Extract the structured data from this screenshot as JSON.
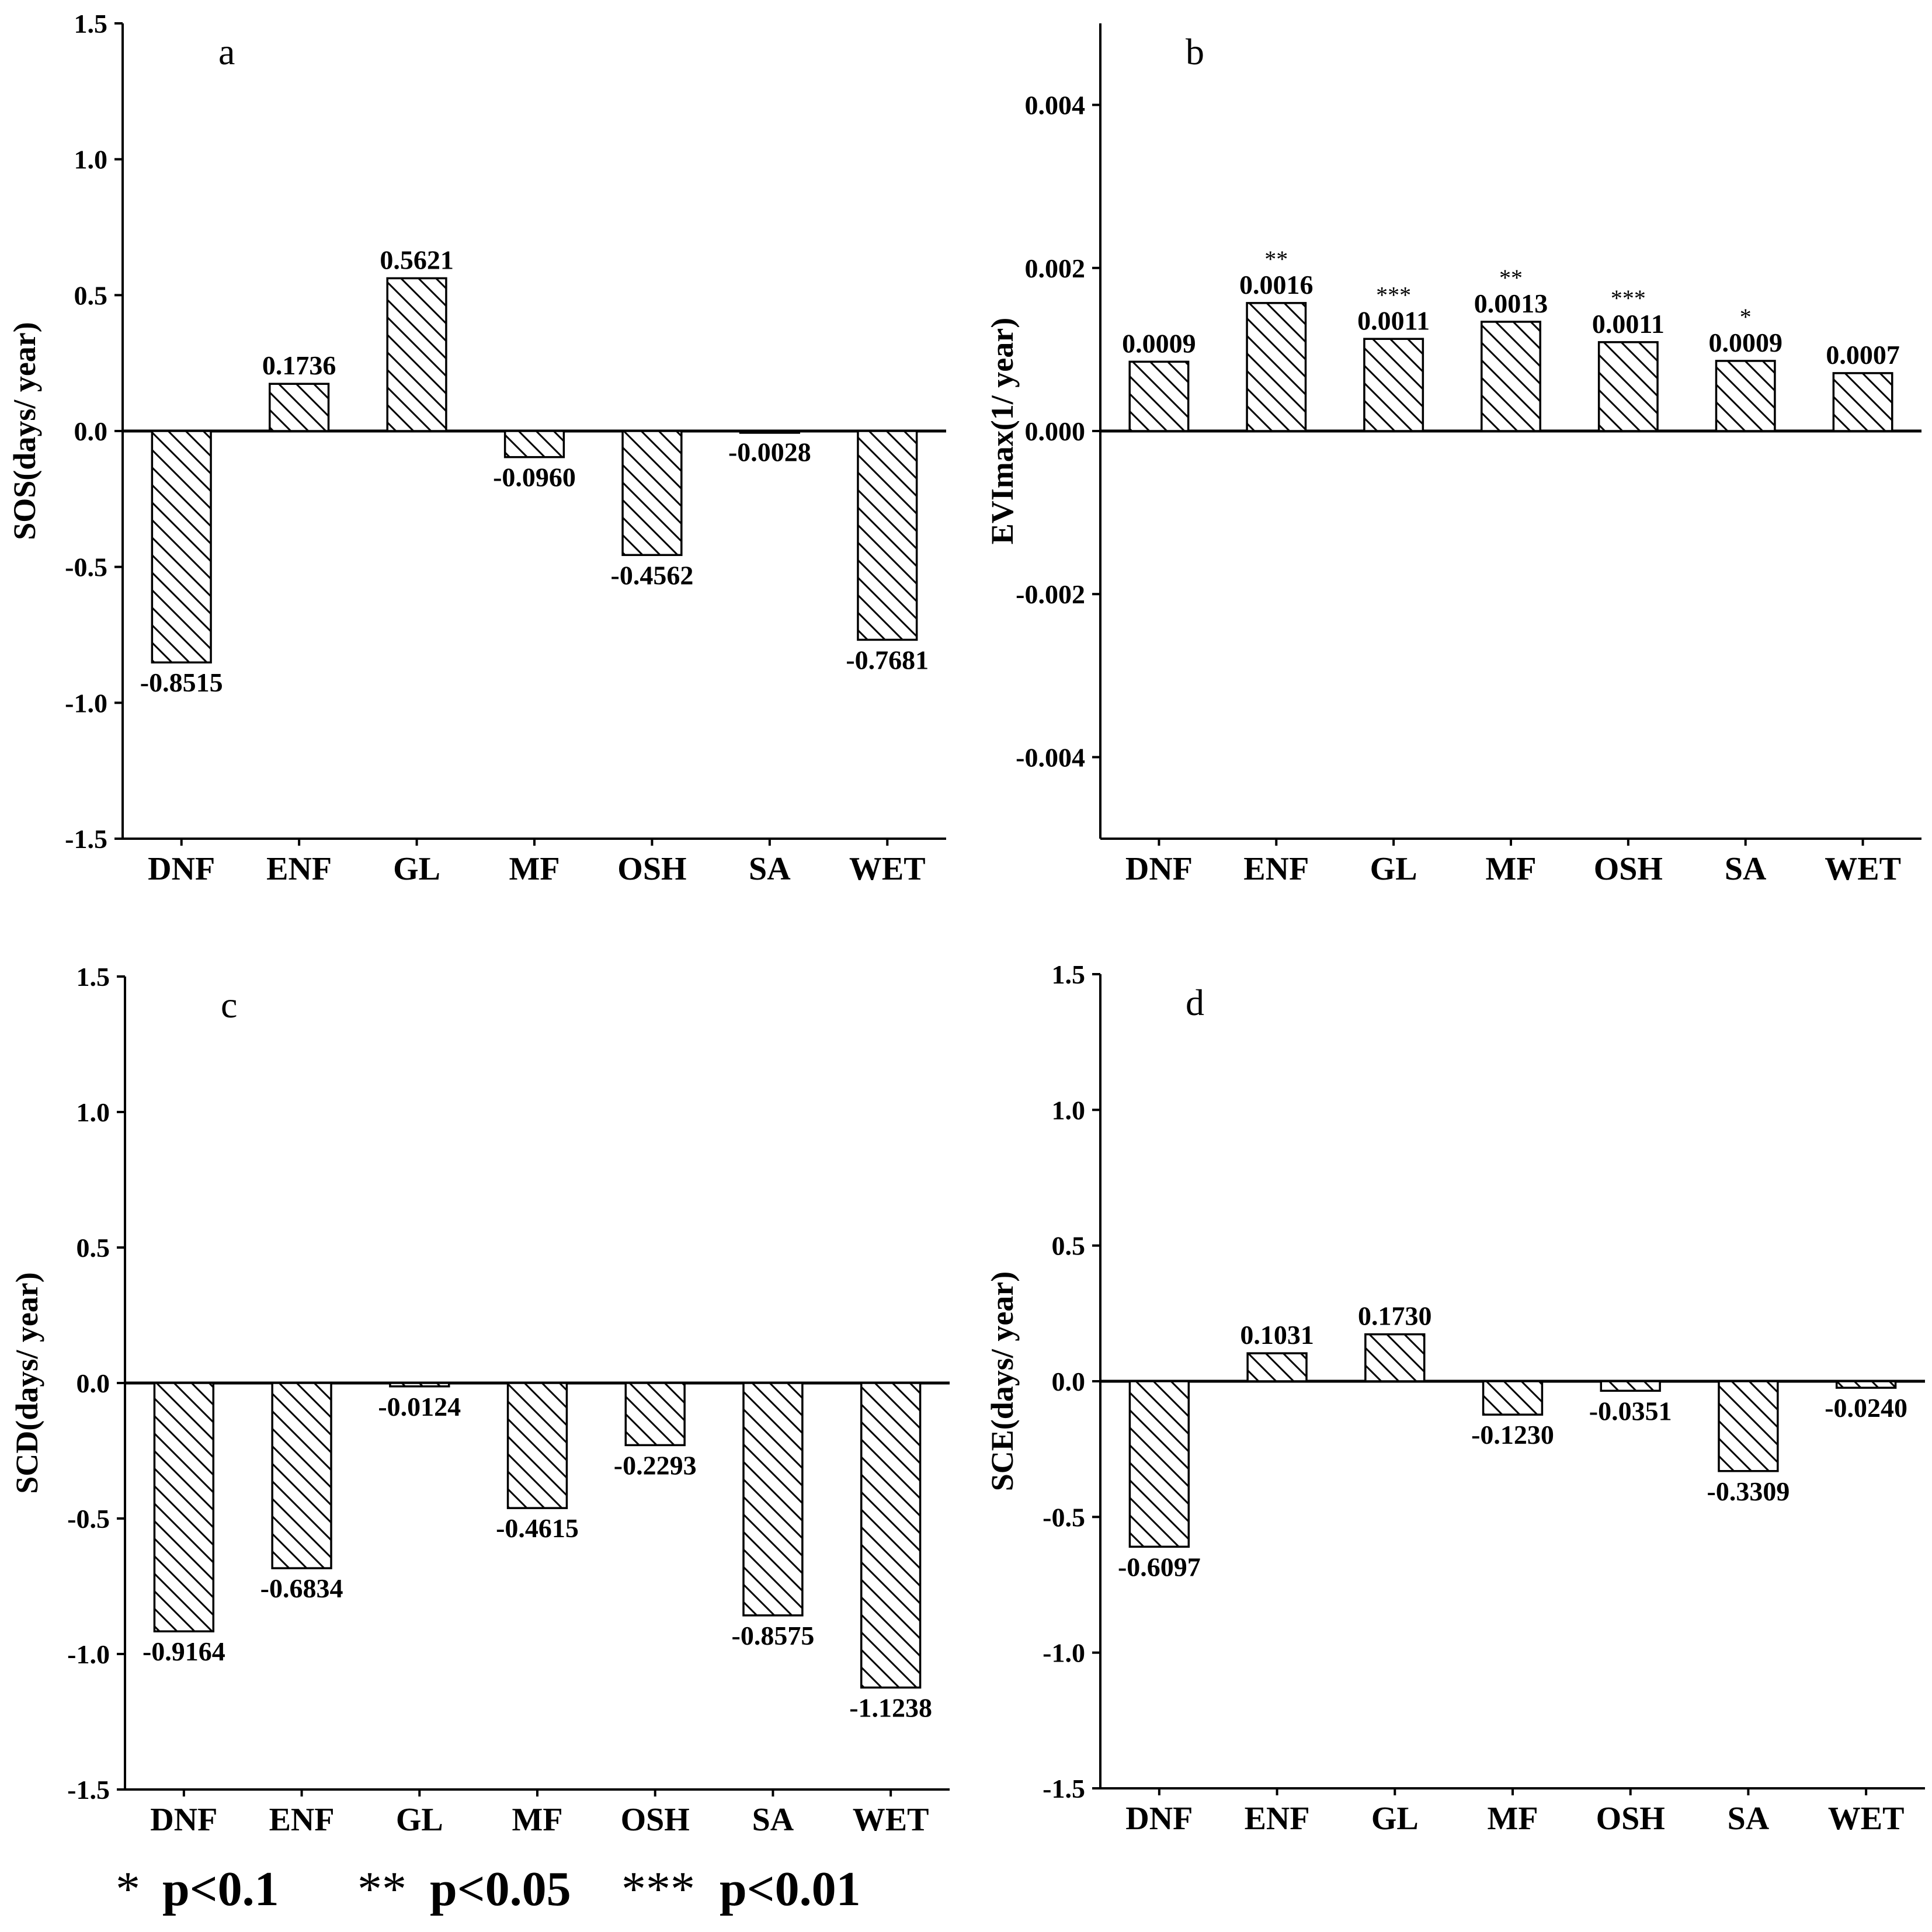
{
  "chart_data": [
    {
      "type": "bar",
      "panel": "a",
      "ylabel": "SOS(days/ year)",
      "categories": [
        "DNF",
        "ENF",
        "GL",
        "MF",
        "OSH",
        "SA",
        "WET"
      ],
      "values": [
        -0.8515,
        0.1736,
        0.5621,
        -0.096,
        -0.4562,
        -0.0028,
        -0.7681
      ],
      "value_labels": [
        "-0.8515",
        "0.1736",
        "0.5621",
        "-0.0960",
        "-0.4562",
        "-0.0028",
        "-0.7681"
      ],
      "significance": [
        "",
        "",
        "",
        "",
        "",
        "",
        ""
      ],
      "ylim": [
        -1.5,
        1.5
      ],
      "yticks": [
        -1.5,
        -1.0,
        -0.5,
        0.0,
        0.5,
        1.0,
        1.5
      ],
      "ytick_labels": [
        "-1.5",
        "-1.0",
        "-0.5",
        "0.0",
        "0.5",
        "1.0",
        "1.5"
      ]
    },
    {
      "type": "bar",
      "panel": "b",
      "ylabel": "EVImax(1/ year)",
      "categories": [
        "DNF",
        "ENF",
        "GL",
        "MF",
        "OSH",
        "SA",
        "WET"
      ],
      "values": [
        0.00085,
        0.00157,
        0.00113,
        0.00134,
        0.00109,
        0.00086,
        0.00071
      ],
      "value_labels": [
        "0.0009",
        "0.0016",
        "0.0011",
        "0.0013",
        "0.0011",
        "0.0009",
        "0.0007"
      ],
      "significance": [
        "",
        "**",
        "***",
        "**",
        "***",
        "*",
        ""
      ],
      "ylim": [
        -0.005,
        0.005
      ],
      "yticks": [
        -0.004,
        -0.002,
        0.0,
        0.002,
        0.004
      ],
      "ytick_labels": [
        "-0.004",
        "-0.002",
        "0.000",
        "0.002",
        "0.004"
      ]
    },
    {
      "type": "bar",
      "panel": "c",
      "ylabel": "SCD(days/ year)",
      "categories": [
        "DNF",
        "ENF",
        "GL",
        "MF",
        "OSH",
        "SA",
        "WET"
      ],
      "values": [
        -0.9164,
        -0.6834,
        -0.0124,
        -0.4615,
        -0.2293,
        -0.8575,
        -1.1238
      ],
      "value_labels": [
        "-0.9164",
        "-0.6834",
        "-0.0124",
        "-0.4615",
        "-0.2293",
        "-0.8575",
        "-1.1238"
      ],
      "significance": [
        "",
        "",
        "",
        "",
        "",
        "",
        ""
      ],
      "ylim": [
        -1.5,
        1.5
      ],
      "yticks": [
        -1.5,
        -1.0,
        -0.5,
        0.0,
        0.5,
        1.0,
        1.5
      ],
      "ytick_labels": [
        "-1.5",
        "-1.0",
        "-0.5",
        "0.0",
        "0.5",
        "1.0",
        "1.5"
      ]
    },
    {
      "type": "bar",
      "panel": "d",
      "ylabel": "SCE(days/ year)",
      "categories": [
        "DNF",
        "ENF",
        "GL",
        "MF",
        "OSH",
        "SA",
        "WET"
      ],
      "values": [
        -0.6097,
        0.1031,
        0.173,
        -0.123,
        -0.0351,
        -0.3309,
        -0.024
      ],
      "value_labels": [
        "-0.6097",
        "0.1031",
        "0.1730",
        "-0.1230",
        "-0.0351",
        "-0.3309",
        "-0.0240"
      ],
      "significance": [
        "",
        "",
        "",
        "",
        "",
        "",
        ""
      ],
      "ylim": [
        -1.5,
        1.5
      ],
      "yticks": [
        -1.5,
        -1.0,
        -0.5,
        0.0,
        0.5,
        1.0,
        1.5
      ],
      "ytick_labels": [
        "-1.5",
        "-1.0",
        "-0.5",
        "0.0",
        "0.5",
        "1.0",
        "1.5"
      ]
    }
  ],
  "legend": {
    "items": [
      {
        "stars": "*",
        "label": "p<0.1"
      },
      {
        "stars": "**",
        "label": "p<0.05"
      },
      {
        "stars": "***",
        "label": "p<0.01"
      }
    ]
  }
}
